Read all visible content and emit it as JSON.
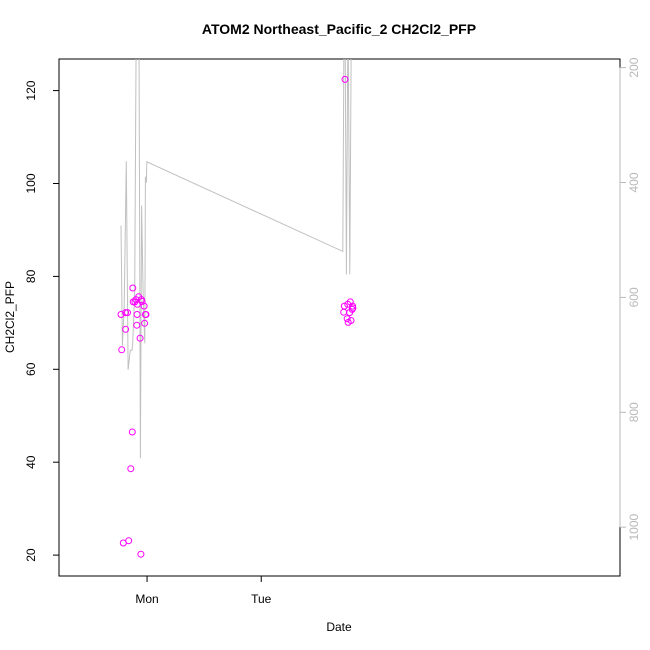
{
  "chart_data": {
    "type": "scatter",
    "title": "ATOM2 Northeast_Pacific_2 CH2Cl2_PFP",
    "xlabel": "Date",
    "ylabel": "CH2Cl2_PFP",
    "x_tick_labels": [
      "Mon",
      "Tue"
    ],
    "x_unit": "days since Sunday 00:00",
    "xlim": [
      0.7035,
      1.1948
    ],
    "ylim": [
      15.5,
      126.8
    ],
    "y_ticks": [
      20,
      40,
      60,
      80,
      100,
      120
    ],
    "y2_ticks": [
      200,
      400,
      600,
      800,
      1000
    ],
    "y2lim": [
      1085,
      185
    ],
    "y2_reversed": true,
    "grid": false,
    "colors": {
      "points": "#ff00ff",
      "line": "#c0c0c0",
      "right_axis": "#b8b8b8"
    },
    "series": [
      {
        "kind": "points",
        "points": [
          [
            0.7578,
            71.8
          ],
          [
            0.7584,
            64.2
          ],
          [
            0.7598,
            22.6
          ],
          [
            0.7618,
            72.2
          ],
          [
            0.7618,
            68.6
          ],
          [
            0.7635,
            72.2
          ],
          [
            0.7645,
            23.1
          ],
          [
            0.7664,
            38.6
          ],
          [
            0.7677,
            46.5
          ],
          [
            0.7681,
            77.5
          ],
          [
            0.7685,
            74.5
          ],
          [
            0.77,
            74.5
          ],
          [
            0.7709,
            75.0
          ],
          [
            0.7716,
            69.5
          ],
          [
            0.7719,
            71.8
          ],
          [
            0.7722,
            74.0
          ],
          [
            0.7733,
            75.6
          ],
          [
            0.7745,
            66.7
          ],
          [
            0.7752,
            20.2
          ],
          [
            0.7757,
            75.0
          ],
          [
            0.7763,
            74.6
          ],
          [
            0.778,
            73.6
          ],
          [
            0.7785,
            69.9
          ],
          [
            0.7792,
            71.8
          ],
          [
            0.7797,
            71.8
          ],
          [
            0.9528,
            72.3
          ],
          [
            0.9534,
            73.6
          ],
          [
            0.954,
            122.4
          ],
          [
            0.9559,
            70.9
          ],
          [
            0.9564,
            74.0
          ],
          [
            0.9568,
            70.1
          ],
          [
            0.958,
            72.2
          ],
          [
            0.9586,
            74.5
          ],
          [
            0.9592,
            70.5
          ],
          [
            0.9603,
            72.9
          ],
          [
            0.9606,
            73.6
          ],
          [
            0.9609,
            73.2
          ]
        ]
      },
      {
        "kind": "line",
        "axis": "right",
        "points": [
          [
            0.7578,
            475
          ],
          [
            0.759,
            684
          ],
          [
            0.7606,
            615
          ],
          [
            0.7624,
            363
          ],
          [
            0.764,
            726
          ],
          [
            0.7659,
            692
          ],
          [
            0.7674,
            692
          ],
          [
            0.768,
            680
          ],
          [
            0.7698,
            590
          ],
          [
            0.7712,
            100
          ],
          [
            0.7726,
            100
          ],
          [
            0.7735,
            100
          ],
          [
            0.7748,
            880
          ],
          [
            0.7758,
            440
          ],
          [
            0.7772,
            600
          ],
          [
            0.7786,
            680
          ],
          [
            0.7792,
            390
          ],
          [
            0.78,
            400
          ],
          [
            0.7804,
            364
          ],
          [
            0.952,
            520
          ],
          [
            0.9532,
            100
          ],
          [
            0.954,
            100
          ],
          [
            0.9552,
            560
          ],
          [
            0.9566,
            100
          ],
          [
            0.9582,
            560
          ],
          [
            0.9596,
            100
          ],
          [
            0.9608,
            100
          ]
        ]
      }
    ]
  }
}
